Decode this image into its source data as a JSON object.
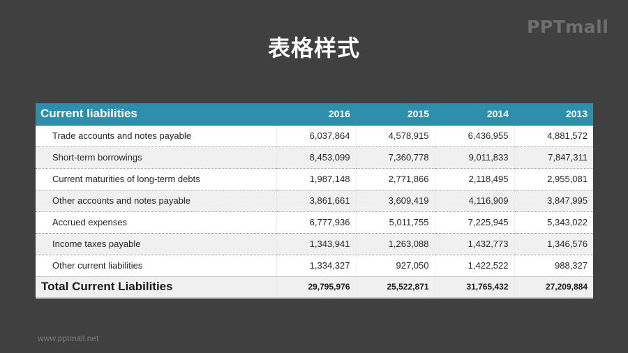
{
  "slide": {
    "title": "表格样式",
    "brand": "PPTmall",
    "footer_url": "www.pptmall.net"
  },
  "table": {
    "header_label": "Current liabilities",
    "years": [
      "2016",
      "2015",
      "2014",
      "2013"
    ],
    "rows": [
      {
        "label": "Trade accounts and notes payable",
        "values": [
          "6,037,864",
          "4,578,915",
          "6,436,955",
          "4,881,572"
        ]
      },
      {
        "label": "Short-term borrowings",
        "values": [
          "8,453,099",
          "7,360,778",
          "9,011,833",
          "7,847,311"
        ]
      },
      {
        "label": "Current maturities of long-term debts",
        "values": [
          "1,987,148",
          "2,771,866",
          "2,118,495",
          "2,955,081"
        ]
      },
      {
        "label": "Other accounts and notes payable",
        "values": [
          "3,861,661",
          "3,609,419",
          "4,116,909",
          "3,847,995"
        ]
      },
      {
        "label": "Accrued expenses",
        "values": [
          "6,777,936",
          "5,011,755",
          "7,225,945",
          "5,343,022"
        ]
      },
      {
        "label": "Income taxes payable",
        "values": [
          "1,343,941",
          "1,263,088",
          "1,432,773",
          "1,346,576"
        ]
      },
      {
        "label": "Other current liabilities",
        "values": [
          "1,334,327",
          "927,050",
          "1,422,522",
          "988,327"
        ]
      }
    ],
    "total": {
      "label": "Total Current Liabilities",
      "values": [
        "29,795,976",
        "25,522,871",
        "31,765,432",
        "27,209,884"
      ]
    }
  },
  "colors": {
    "background": "#404040",
    "header_accent": "#2e8fad",
    "row_alt": "#f0f0f0",
    "row_base": "#ffffff"
  }
}
